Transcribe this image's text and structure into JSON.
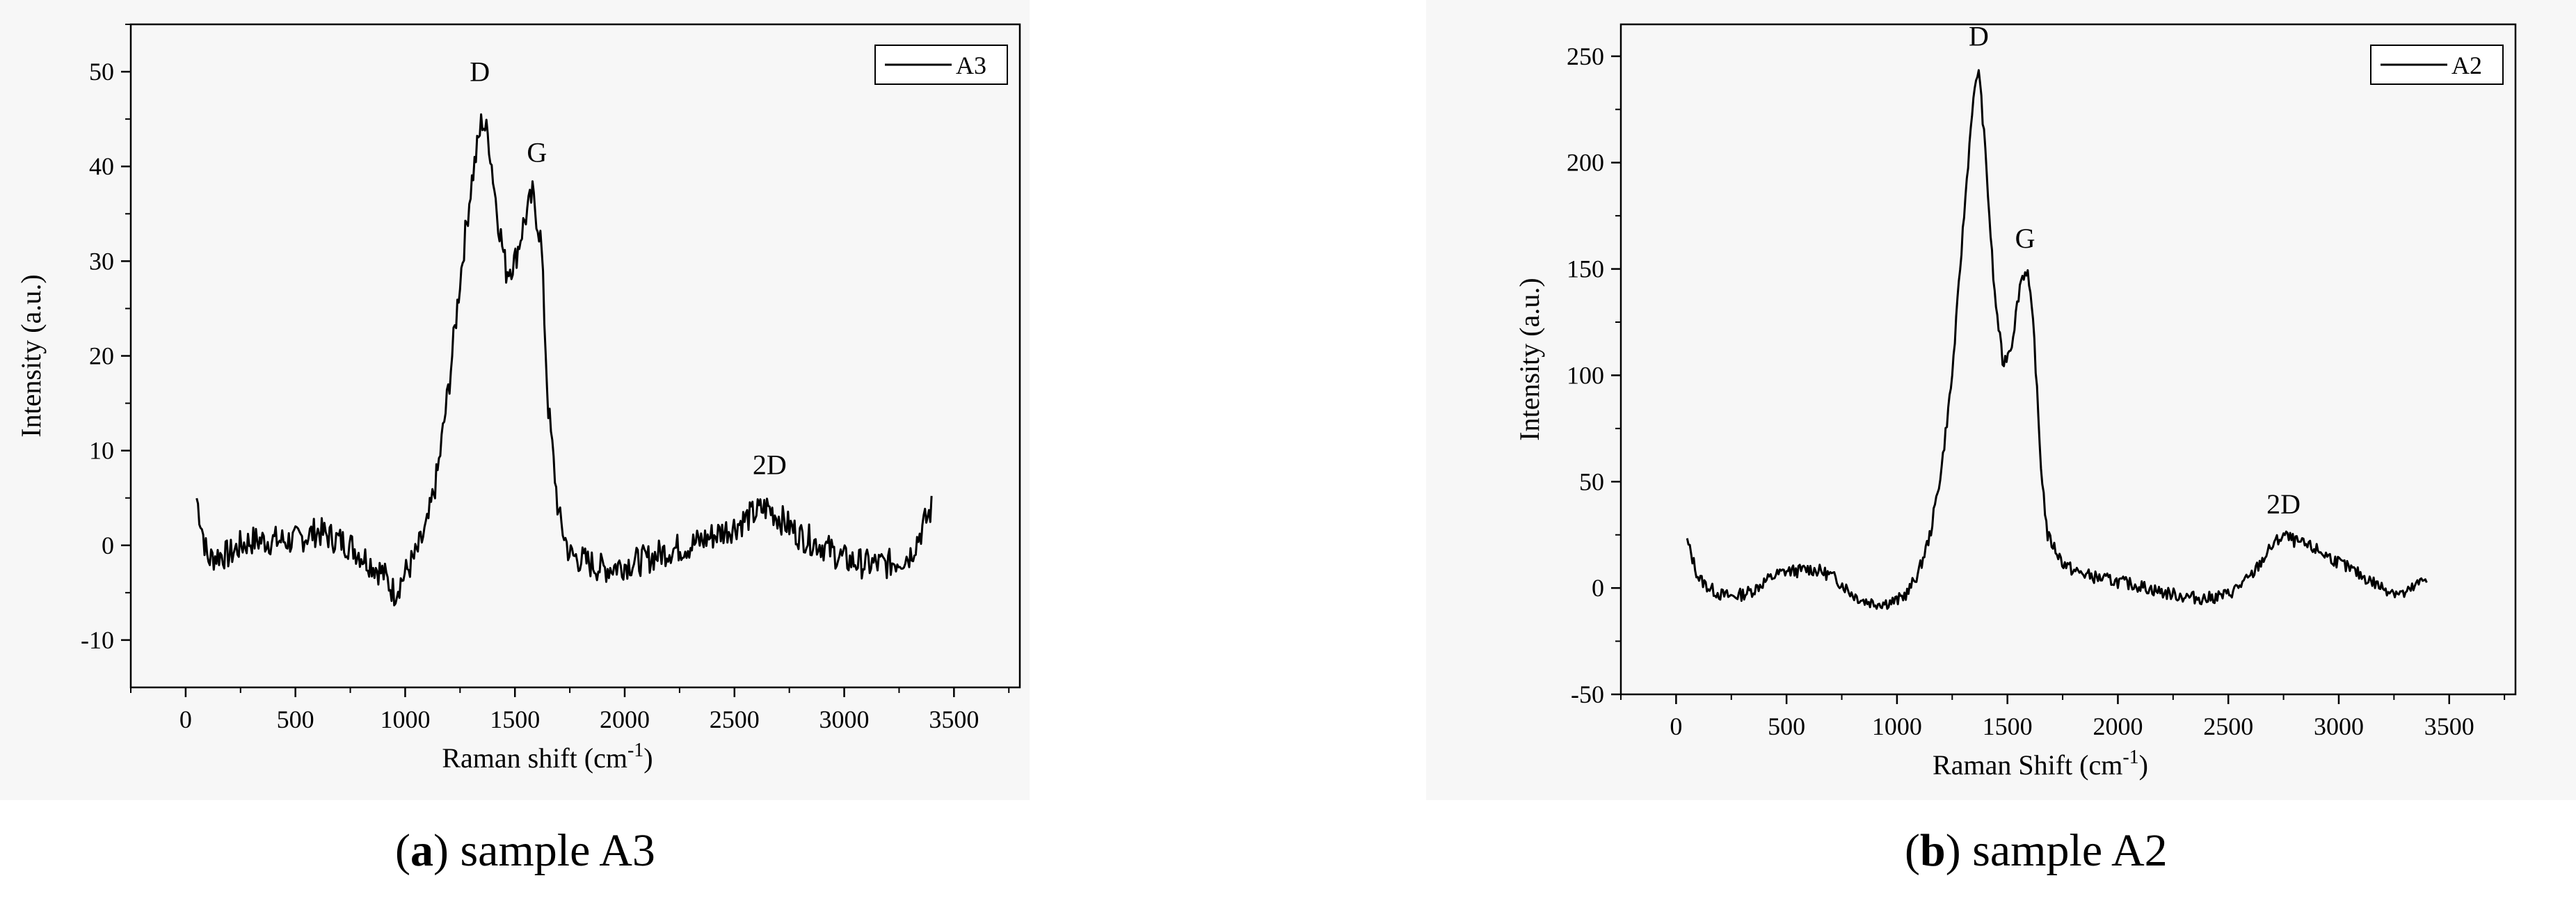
{
  "captions": [
    {
      "letter": "a",
      "text": "sample A3"
    },
    {
      "letter": "b",
      "text": "sample A2"
    }
  ],
  "chart_data": [
    {
      "type": "line",
      "xlabel": "Raman shift (cm",
      "xlabel_sup": "-1",
      "xlabel_tail": ")",
      "ylabel": "Intensity (a.u.)",
      "xlim": [
        -250,
        3800
      ],
      "ylim": [
        -15,
        55
      ],
      "xticks": [
        0,
        500,
        1000,
        1500,
        2000,
        2500,
        3000,
        3500
      ],
      "yticks": [
        -10,
        0,
        10,
        20,
        30,
        40,
        50
      ],
      "legend": {
        "label": "A3",
        "placement": "top-right"
      },
      "grid": false,
      "color": "#000000",
      "annotations": [
        {
          "text": "D",
          "x": 1340,
          "y": 49
        },
        {
          "text": "G",
          "x": 1600,
          "y": 40.5
        },
        {
          "text": "2D",
          "x": 2660,
          "y": 7.5
        }
      ],
      "series": [
        {
          "name": "A3",
          "x": [
            50,
            100,
            150,
            200,
            250,
            300,
            350,
            400,
            450,
            500,
            550,
            600,
            650,
            700,
            750,
            800,
            850,
            900,
            950,
            1000,
            1050,
            1100,
            1150,
            1200,
            1250,
            1300,
            1350,
            1380,
            1420,
            1460,
            1500,
            1540,
            1580,
            1620,
            1650,
            1700,
            1750,
            1800,
            1900,
            2000,
            2100,
            2200,
            2300,
            2400,
            2500,
            2600,
            2650,
            2700,
            2800,
            2900,
            3000,
            3100,
            3200,
            3300,
            3400
          ],
          "y": [
            5,
            -1.5,
            -1,
            -1,
            0,
            0.5,
            0.5,
            0.5,
            0.5,
            0.5,
            1,
            1.5,
            1,
            0.5,
            0,
            -1,
            -2,
            -3,
            -5,
            -3,
            -1,
            2,
            8,
            17,
            28,
            38,
            45,
            43,
            35,
            29,
            30,
            34,
            37,
            32,
            15,
            3,
            -1,
            -1.5,
            -2.5,
            -2,
            -1.5,
            -0.5,
            0,
            1,
            2,
            3.5,
            4,
            3,
            1,
            0,
            -1.5,
            -2,
            -2,
            -1,
            4
          ]
        }
      ]
    },
    {
      "type": "line",
      "xlabel": "Raman Shift (cm",
      "xlabel_sup": "-1",
      "xlabel_tail": ")",
      "ylabel": "Intensity (a.u.)",
      "xlim": [
        -250,
        3800
      ],
      "ylim": [
        -50,
        265
      ],
      "xticks": [
        0,
        500,
        1000,
        1500,
        2000,
        2500,
        3000,
        3500
      ],
      "yticks": [
        -50,
        0,
        50,
        100,
        150,
        200,
        250
      ],
      "legend": {
        "label": "A2",
        "placement": "top-right"
      },
      "grid": false,
      "color": "#000000",
      "annotations": [
        {
          "text": "D",
          "x": 1370,
          "y": 255
        },
        {
          "text": "G",
          "x": 1580,
          "y": 160
        },
        {
          "text": "2D",
          "x": 2750,
          "y": 35
        }
      ],
      "series": [
        {
          "name": "A2",
          "x": [
            50,
            100,
            150,
            200,
            250,
            300,
            350,
            400,
            450,
            500,
            550,
            600,
            650,
            700,
            750,
            800,
            850,
            900,
            950,
            1000,
            1050,
            1100,
            1150,
            1200,
            1250,
            1300,
            1340,
            1370,
            1400,
            1440,
            1480,
            1520,
            1560,
            1590,
            1620,
            1650,
            1680,
            1750,
            1800,
            1900,
            2000,
            2100,
            2200,
            2300,
            2400,
            2500,
            2600,
            2700,
            2750,
            2800,
            2900,
            3000,
            3100,
            3200,
            3300,
            3400
          ],
          "y": [
            22,
            5,
            0,
            -3,
            -4,
            -3,
            -1,
            3,
            6,
            8,
            8,
            9,
            8,
            6,
            2,
            -3,
            -6,
            -7,
            -7,
            -6,
            -2,
            8,
            25,
            55,
            100,
            170,
            225,
            245,
            205,
            140,
            105,
            115,
            145,
            150,
            120,
            60,
            25,
            12,
            8,
            5,
            3,
            1,
            -2,
            -4,
            -5,
            -3,
            5,
            20,
            25,
            22,
            18,
            12,
            6,
            0,
            -3,
            5
          ]
        }
      ]
    }
  ]
}
